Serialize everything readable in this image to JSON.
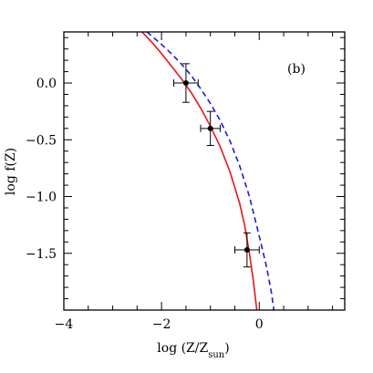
{
  "chart_data": {
    "type": "line",
    "panel_label": "(b)",
    "xlabel_main": "log (Z/Z",
    "xlabel_sub": "sun",
    "xlabel_close": ")",
    "ylabel": "log f(Z)",
    "xlim": [
      -4.0,
      1.75
    ],
    "ylim": [
      -2.0,
      0.45
    ],
    "x_ticks": [
      -4,
      -2,
      0
    ],
    "x_tick_labels": [
      "−4",
      "−2",
      "0"
    ],
    "y_ticks": [
      0.0,
      -0.5,
      -1.0,
      -1.5
    ],
    "y_tick_labels": [
      "0.0",
      "−0.5",
      "−1.0",
      "−1.5"
    ],
    "grid": false,
    "series": [
      {
        "style": "solid",
        "color": "#e8141c",
        "x": [
          -2.4,
          -2.2,
          -2.0,
          -1.8,
          -1.6,
          -1.4,
          -1.2,
          -1.0,
          -0.8,
          -0.6,
          -0.4,
          -0.3,
          -0.2,
          -0.12,
          -0.05
        ],
        "y": [
          0.45,
          0.36,
          0.26,
          0.15,
          0.04,
          -0.08,
          -0.22,
          -0.38,
          -0.56,
          -0.78,
          -1.06,
          -1.25,
          -1.5,
          -1.74,
          -2.0
        ]
      },
      {
        "style": "dashed",
        "color": "#1a1ad6",
        "x": [
          -2.3,
          -2.0,
          -1.8,
          -1.6,
          -1.4,
          -1.2,
          -1.0,
          -0.8,
          -0.6,
          -0.4,
          -0.2,
          0.0,
          0.15,
          0.25,
          0.3
        ],
        "y": [
          0.45,
          0.34,
          0.26,
          0.17,
          0.07,
          -0.05,
          -0.18,
          -0.33,
          -0.51,
          -0.73,
          -1.0,
          -1.35,
          -1.62,
          -1.85,
          -2.0
        ]
      }
    ],
    "points": [
      {
        "x": -1.5,
        "y": 0.0,
        "xerr": 0.25,
        "yerr": 0.17
      },
      {
        "x": -1.0,
        "y": -0.4,
        "xerr": 0.2,
        "yerr": 0.15
      },
      {
        "x": -0.25,
        "y": -1.47,
        "xerr": 0.25,
        "yerr": 0.15
      }
    ]
  }
}
